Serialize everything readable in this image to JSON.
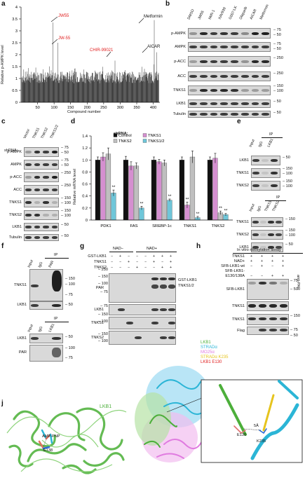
{
  "panels": {
    "a": "a",
    "b": "b",
    "c": "c",
    "d": "d",
    "e": "e",
    "f": "f",
    "g": "g",
    "h": "h",
    "i": "i",
    "j": "j"
  },
  "a": {
    "ylabel": "Relative p-AMPK level",
    "xlabel": "Compound number",
    "yticks": [
      "0",
      "0.5",
      "1",
      "1.5",
      "2",
      "2.5",
      "3",
      "3.5",
      "4"
    ],
    "xticks": [
      "50",
      "100",
      "150",
      "200",
      "250",
      "300",
      "350",
      "400"
    ],
    "hits": [
      {
        "label": "JW55",
        "color": "#e02020"
      },
      {
        "label": "JW-55",
        "color": "#e02020"
      },
      {
        "label": "CHIR-99021",
        "color": "#e02020"
      },
      {
        "label": "Metformin",
        "color": "#111111"
      },
      {
        "label": "AICAR",
        "color": "#111111"
      }
    ]
  },
  "b": {
    "lanes": [
      "DMSO",
      "JW55",
      "IWR-1",
      "XAV939",
      "G007-LK",
      "Olaparib",
      "AICAR",
      "Metformin"
    ],
    "rows": [
      "p-AMPK",
      "AMPK",
      "p-ACC",
      "ACC",
      "TNKS1",
      "LKB1",
      "Tubulin"
    ],
    "mw": [
      "75",
      "50",
      "75",
      "50",
      "250",
      "250",
      "150",
      "100",
      "50",
      "50"
    ]
  },
  "c": {
    "shrna_label": "shRNA:",
    "lanes": [
      "Vector",
      "TNKS1",
      "TNKS2",
      "TNKS1/2"
    ],
    "rows": [
      "p-AMPK",
      "AMPK",
      "p-ACC",
      "ACC",
      "TNKS1",
      "TNKS2",
      "LKB1",
      "Tubulin"
    ],
    "mw": [
      "75",
      "50",
      "75",
      "50",
      "250",
      "250",
      "150",
      "100",
      "150",
      "100",
      "50",
      "50"
    ]
  },
  "d": {
    "ylabel": "Relative mRNA level",
    "legend_title": "shRNA:",
    "legend": [
      "Control",
      "TNKS1",
      "TNKS2",
      "TNKS1/2"
    ],
    "colors": [
      "#111111",
      "#d58fd0",
      "#bfbfbf",
      "#6fc6d9"
    ],
    "categories": [
      "PDK1",
      "FAS",
      "SREBP-1c",
      "TNKS1",
      "TNKS2"
    ],
    "yticks": [
      "0",
      "0.2",
      "0.4",
      "0.6",
      "0.8",
      "1.0",
      "1.2",
      "1.4"
    ],
    "stars": "**"
  },
  "chart_data": {
    "type": "bar",
    "ylabel": "Relative mRNA level",
    "ylim": [
      0,
      1.4
    ],
    "categories": [
      "PDK1",
      "FAS",
      "SREBP-1c",
      "TNKS1",
      "TNKS2"
    ],
    "series": [
      {
        "name": "Control",
        "values": [
          1.0,
          1.0,
          1.0,
          1.0,
          1.0
        ]
      },
      {
        "name": "TNKS1",
        "values": [
          1.05,
          0.9,
          0.97,
          0.25,
          1.03
        ]
      },
      {
        "name": "TNKS2",
        "values": [
          1.1,
          0.9,
          0.95,
          1.05,
          0.12
        ]
      },
      {
        "name": "TNKS1/2",
        "values": [
          0.45,
          0.2,
          0.33,
          0.04,
          0.09
        ]
      }
    ],
    "errors": [
      [
        0.05,
        0.06,
        0.05,
        0.05,
        0.05
      ],
      [
        0.07,
        0.07,
        0.04,
        0.05,
        0.08
      ],
      [
        0.1,
        0.05,
        0.05,
        0.1,
        0.03
      ],
      [
        0.05,
        0.03,
        0.02,
        0.02,
        0.02
      ]
    ]
  },
  "e": {
    "ip": "IP",
    "top_lanes": [
      "Input",
      "IgG",
      "LKB1"
    ],
    "top_rows": [
      "LKB1",
      "TNKS1",
      "TNKS2"
    ],
    "top_mw": [
      "50",
      "150",
      "100",
      "150",
      "100"
    ],
    "bot_lanes": [
      "Input",
      "IgG",
      "TNKS1",
      "TNKS2"
    ],
    "bot_rows": [
      "TNKS1",
      "TNKS2",
      "LKB1"
    ],
    "bot_mw": [
      "150",
      "150",
      "100",
      "50"
    ]
  },
  "f": {
    "ip": "IP",
    "top_lanes": [
      "Input",
      "IgG",
      "PAR"
    ],
    "top_rows": [
      "TNKS1",
      "LKB1"
    ],
    "top_mw": [
      "150",
      "100",
      "75",
      "50"
    ],
    "bot_lanes": [
      "Input",
      "IgG",
      "LKB1"
    ],
    "bot_rows": [
      "LKB1",
      "PAR"
    ],
    "bot_mw": [
      "50",
      "100",
      "75"
    ]
  },
  "g": {
    "nad_minus": "NAD−",
    "nad_plus": "NAD+",
    "cond": [
      "GST-LKB1",
      "TNKS1",
      "TNKS2"
    ],
    "signs": [
      [
        "−",
        "+",
        "−",
        "−",
        "−",
        "+",
        "+",
        "+"
      ],
      [
        "−",
        "−",
        "+",
        "−",
        "−",
        "+",
        "−",
        "+"
      ],
      [
        "−",
        "−",
        "−",
        "+",
        "−",
        "−",
        "+",
        "+"
      ]
    ],
    "rows": [
      "PAR",
      "LKB1",
      "TNKS1",
      "TNKS2"
    ],
    "annot": [
      "GST-LKB1",
      "TNKS1/2"
    ],
    "mw": [
      "250",
      "150",
      "100",
      "75",
      "75",
      "150",
      "100",
      "150",
      "100"
    ]
  },
  "h": {
    "title": "In vitro ribosylation assay",
    "cond": [
      "TNKS1",
      "NAD+",
      "SFB-LKB1-wt",
      "SFB-LKB1-",
      "E130/138A"
    ],
    "signs": [
      [
        "+",
        "+",
        "+",
        "+"
      ],
      [
        "+",
        "+",
        "+",
        "+"
      ],
      [
        "−",
        "+",
        "−",
        "+"
      ],
      [
        "−",
        "−",
        "+",
        "+"
      ]
    ],
    "rows": [
      "SFB-LKB1",
      "TNKS1",
      "TNKS1",
      "Flag"
    ],
    "side": "anti-PAR",
    "mw": [
      "75",
      "50",
      "150",
      "75",
      "50"
    ]
  },
  "i": {
    "legend": [
      {
        "label": "LKB1",
        "color": "#4caf3a"
      },
      {
        "label": "STRADα",
        "color": "#2bb5d6"
      },
      {
        "label": "MO25α",
        "color": "#e07be0"
      },
      {
        "label": "STRADα K235",
        "color": "#e6c41e"
      },
      {
        "label": "LKB1 E130",
        "color": "#e02020"
      }
    ],
    "dist": "5Å",
    "res1": "E130",
    "res2": "K235"
  },
  "j": {
    "title": "LKB1",
    "ligand": "AMP-PNP",
    "res": "E138"
  }
}
